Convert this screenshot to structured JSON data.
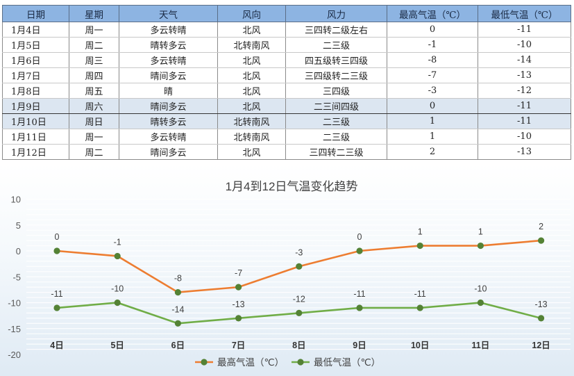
{
  "table": {
    "headers": [
      "日期",
      "星期",
      "天气",
      "风向",
      "风力",
      "最高气温（℃）",
      "最低气温（℃）"
    ],
    "rows": [
      [
        "1月4日",
        "周一",
        "多云转晴",
        "北风",
        "三四转二级左右",
        "0",
        "-11"
      ],
      [
        "1月5日",
        "周二",
        "晴转多云",
        "北转南风",
        "二三级",
        "-1",
        "-10"
      ],
      [
        "1月6日",
        "周三",
        "多云转晴",
        "北风",
        "四五级转三四级",
        "-8",
        "-14"
      ],
      [
        "1月7日",
        "周四",
        "晴间多云",
        "北风",
        "三四级转二三级",
        "-7",
        "-13"
      ],
      [
        "1月8日",
        "周五",
        "晴",
        "北风",
        "三四级",
        "-3",
        "-12"
      ],
      [
        "1月9日",
        "周六",
        "晴间多云",
        "北风",
        "二三间四级",
        "0",
        "-11"
      ],
      [
        "1月10日",
        "周日",
        "晴转多云",
        "北转南风",
        "二三级",
        "1",
        "-11"
      ],
      [
        "1月11日",
        "周一",
        "多云转晴",
        "北转南风",
        "二三级",
        "1",
        "-10"
      ],
      [
        "1月12日",
        "周二",
        "晴间多云",
        "北风",
        "三四转二三级",
        "2",
        "-13"
      ]
    ],
    "header_color": "#8db4e2",
    "highlight_color": "#dce6f1"
  },
  "chart_data": {
    "type": "line",
    "title": "1月4到12日气温变化趋势",
    "categories": [
      "4日",
      "5日",
      "6日",
      "7日",
      "8日",
      "9日",
      "10日",
      "11日",
      "12日"
    ],
    "series": [
      {
        "name": "最高气温（℃）",
        "values": [
          0,
          -1,
          -8,
          -7,
          -3,
          0,
          1,
          1,
          2
        ],
        "color": "#ed7d31"
      },
      {
        "name": "最低气温（℃）",
        "values": [
          -11,
          -10,
          -14,
          -13,
          -12,
          -11,
          -11,
          -10,
          -13
        ],
        "color": "#70ad47"
      }
    ],
    "yticks": [
      10,
      5,
      0,
      -5,
      -10,
      -15,
      -20
    ],
    "ylim": [
      -20,
      10
    ],
    "grid": true,
    "legend": "bottom",
    "data_labels": true,
    "marker_color": "#548235"
  }
}
